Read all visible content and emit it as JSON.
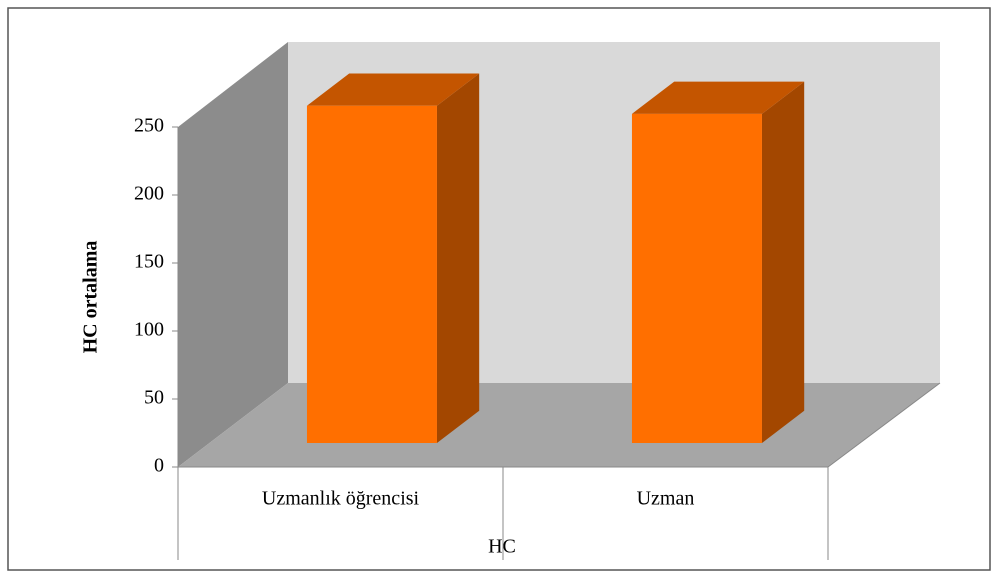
{
  "chart_data": {
    "type": "bar3d",
    "ylabel": "HC ortalama",
    "xlabel": "HC",
    "categories": [
      "Uzmanlık öğrencisi",
      "Uzman"
    ],
    "values": [
      248,
      242
    ],
    "color": "#ff6f00",
    "ylim": [
      0,
      250
    ],
    "yticks": [
      0,
      50,
      100,
      150,
      200,
      250
    ]
  }
}
